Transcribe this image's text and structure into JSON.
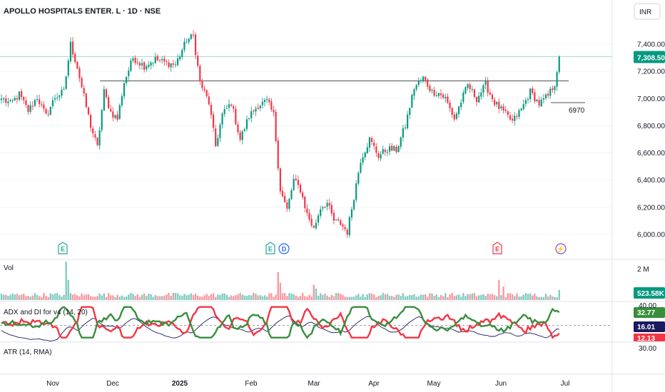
{
  "chart_data": {
    "type": "candlestick",
    "title": "APOLLO HOSPITALS ENTER. L · 1D · NSE",
    "currency": "INR",
    "price_axis": {
      "ticks": [
        "7,400.00",
        "7,200.00",
        "7,000.00",
        "6,800.00",
        "6,600.00",
        "6,400.00",
        "6,200.00",
        "6,000.00"
      ],
      "tick_values": [
        7400,
        7200,
        7000,
        6800,
        6600,
        6400,
        6200,
        6000
      ],
      "range": [
        5985,
        7545
      ]
    },
    "last_price": {
      "value": 7308.5,
      "label": "7,308.50"
    },
    "levels": [
      {
        "value": 7130,
        "label": ""
      },
      {
        "value": 6970,
        "label": "6970"
      }
    ],
    "time_axis": [
      {
        "label": "Nov",
        "bold": false
      },
      {
        "label": "Dec",
        "bold": false
      },
      {
        "label": "2025",
        "bold": true
      },
      {
        "label": "Feb",
        "bold": false
      },
      {
        "label": "Mar",
        "bold": false
      },
      {
        "label": "Apr",
        "bold": false
      },
      {
        "label": "May",
        "bold": false
      },
      {
        "label": "Jun",
        "bold": false
      },
      {
        "label": "Jul",
        "bold": false
      }
    ],
    "events": [
      {
        "label": "E",
        "kind": "earnings",
        "color": "#26a69a"
      },
      {
        "label": "E",
        "kind": "earnings",
        "color": "#26a69a"
      },
      {
        "label": "D",
        "kind": "dividend",
        "color": "#2962ff"
      },
      {
        "label": "E",
        "kind": "earnings",
        "color": "#f23645"
      },
      {
        "label": "⚡",
        "kind": "split",
        "color": "#7e57c2"
      }
    ],
    "anchors": [
      {
        "i": 0,
        "c": 7000
      },
      {
        "i": 4,
        "c": 6960
      },
      {
        "i": 8,
        "c": 7030
      },
      {
        "i": 12,
        "c": 6910
      },
      {
        "i": 16,
        "c": 7010
      },
      {
        "i": 20,
        "c": 6870
      },
      {
        "i": 24,
        "c": 7010
      },
      {
        "i": 28,
        "c": 7050
      },
      {
        "i": 31,
        "c": 7400
      },
      {
        "i": 34,
        "c": 7230
      },
      {
        "i": 37,
        "c": 7010
      },
      {
        "i": 40,
        "c": 6800
      },
      {
        "i": 43,
        "c": 6640
      },
      {
        "i": 46,
        "c": 7050
      },
      {
        "i": 49,
        "c": 6900
      },
      {
        "i": 52,
        "c": 6850
      },
      {
        "i": 55,
        "c": 7120
      },
      {
        "i": 59,
        "c": 7300
      },
      {
        "i": 64,
        "c": 7240
      },
      {
        "i": 69,
        "c": 7290
      },
      {
        "i": 74,
        "c": 7260
      },
      {
        "i": 78,
        "c": 7250
      },
      {
        "i": 83,
        "c": 7430
      },
      {
        "i": 86,
        "c": 7460
      },
      {
        "i": 89,
        "c": 7120
      },
      {
        "i": 93,
        "c": 6970
      },
      {
        "i": 96,
        "c": 6650
      },
      {
        "i": 99,
        "c": 6880
      },
      {
        "i": 103,
        "c": 6970
      },
      {
        "i": 107,
        "c": 6700
      },
      {
        "i": 111,
        "c": 6870
      },
      {
        "i": 115,
        "c": 6950
      },
      {
        "i": 119,
        "c": 6980
      },
      {
        "i": 122,
        "c": 6880
      },
      {
        "i": 125,
        "c": 6330
      },
      {
        "i": 128,
        "c": 6180
      },
      {
        "i": 131,
        "c": 6400
      },
      {
        "i": 134,
        "c": 6330
      },
      {
        "i": 137,
        "c": 6150
      },
      {
        "i": 140,
        "c": 6040
      },
      {
        "i": 143,
        "c": 6200
      },
      {
        "i": 146,
        "c": 6230
      },
      {
        "i": 149,
        "c": 6100
      },
      {
        "i": 152,
        "c": 6080
      },
      {
        "i": 155,
        "c": 6020
      },
      {
        "i": 158,
        "c": 6280
      },
      {
        "i": 161,
        "c": 6550
      },
      {
        "i": 165,
        "c": 6700
      },
      {
        "i": 169,
        "c": 6580
      },
      {
        "i": 173,
        "c": 6630
      },
      {
        "i": 177,
        "c": 6620
      },
      {
        "i": 181,
        "c": 6800
      },
      {
        "i": 185,
        "c": 7080
      },
      {
        "i": 189,
        "c": 7150
      },
      {
        "i": 193,
        "c": 7050
      },
      {
        "i": 196,
        "c": 7040
      },
      {
        "i": 199,
        "c": 7000
      },
      {
        "i": 203,
        "c": 6850
      },
      {
        "i": 206,
        "c": 6980
      },
      {
        "i": 209,
        "c": 7100
      },
      {
        "i": 213,
        "c": 7000
      },
      {
        "i": 217,
        "c": 7100
      },
      {
        "i": 221,
        "c": 6970
      },
      {
        "i": 225,
        "c": 6900
      },
      {
        "i": 229,
        "c": 6830
      },
      {
        "i": 233,
        "c": 6920
      },
      {
        "i": 237,
        "c": 7050
      },
      {
        "i": 241,
        "c": 6960
      },
      {
        "i": 245,
        "c": 7020
      },
      {
        "i": 248,
        "c": 7110
      },
      {
        "i": 250,
        "c": 7308.5
      }
    ],
    "volume": {
      "label": "Vol",
      "last": "523.58K",
      "axis_label": "2 M",
      "spikes": [
        {
          "i": 29,
          "v": 2000000
        },
        {
          "i": 30,
          "v": 1050000
        },
        {
          "i": 124,
          "v": 1450000
        },
        {
          "i": 125,
          "v": 900000
        },
        {
          "i": 140,
          "v": 800000
        },
        {
          "i": 141,
          "v": 600000
        },
        {
          "i": 223,
          "v": 1050000
        },
        {
          "i": 225,
          "v": 700000
        }
      ]
    },
    "adx": {
      "label": "ADX and DI for v4 (14, 20)",
      "axis_label": "40.00",
      "threshold": 20,
      "range": [
        0,
        45
      ],
      "values": [
        {
          "label": "32.77",
          "color": "#388e3c",
          "name": "+DI"
        },
        {
          "label": "16.01",
          "color": "#1a1a5e",
          "name": "ADX"
        },
        {
          "label": "12.13",
          "color": "#f23645",
          "name": "-DI"
        }
      ]
    },
    "atr": {
      "label": "ATR (14, RMA)",
      "axis_label": "30.00"
    }
  }
}
